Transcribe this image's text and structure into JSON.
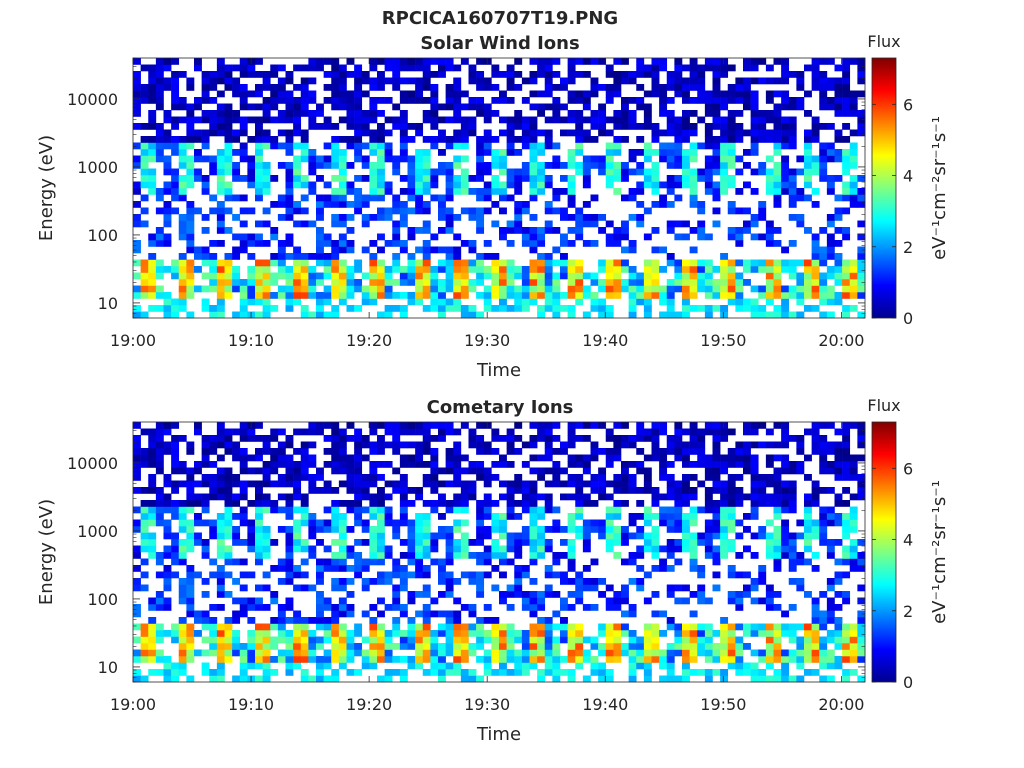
{
  "figure_title": "RPCICA160707T19.PNG",
  "chart_data": [
    {
      "type": "heatmap",
      "title": "Solar Wind Ions",
      "xlabel": "Time",
      "ylabel": "Energy (eV)",
      "x_ticks": [
        "19:00",
        "19:10",
        "19:20",
        "19:30",
        "19:40",
        "19:50",
        "20:00"
      ],
      "x_range": [
        "19:00",
        "20:02"
      ],
      "y_scale": "log",
      "y_ticks": [
        "10",
        "100",
        "1000",
        "10000"
      ],
      "y_range": [
        6,
        40000
      ],
      "colorbar": {
        "title": "Flux",
        "label": "eV⁻¹cm⁻²sr⁻¹s⁻¹",
        "ticks": [
          "0",
          "2",
          "4",
          "6"
        ],
        "range": [
          0,
          7.3
        ],
        "colormap": "jet"
      },
      "features": [
        {
          "energy_eV": [
            15,
            30
          ],
          "flux": [
            3,
            6
          ],
          "period_min": 3.3,
          "description_hidden": true
        },
        {
          "energy_eV": [
            500,
            1500
          ],
          "flux": [
            2,
            3
          ],
          "period_min": 3.3,
          "description_hidden": true
        },
        {
          "energy_eV": [
            2000,
            40000
          ],
          "flux": [
            0.2,
            1
          ],
          "description_hidden": true
        }
      ]
    },
    {
      "type": "heatmap",
      "title": "Cometary Ions",
      "xlabel": "Time",
      "ylabel": "Energy (eV)",
      "x_ticks": [
        "19:00",
        "19:10",
        "19:20",
        "19:30",
        "19:40",
        "19:50",
        "20:00"
      ],
      "x_range": [
        "19:00",
        "20:02"
      ],
      "y_scale": "log",
      "y_ticks": [
        "10",
        "100",
        "1000",
        "10000"
      ],
      "y_range": [
        6,
        40000
      ],
      "colorbar": {
        "title": "Flux",
        "label": "eV⁻¹cm⁻²sr⁻¹s⁻¹",
        "ticks": [
          "0",
          "2",
          "4",
          "6"
        ],
        "range": [
          0,
          7.3
        ],
        "colormap": "jet"
      }
    }
  ]
}
